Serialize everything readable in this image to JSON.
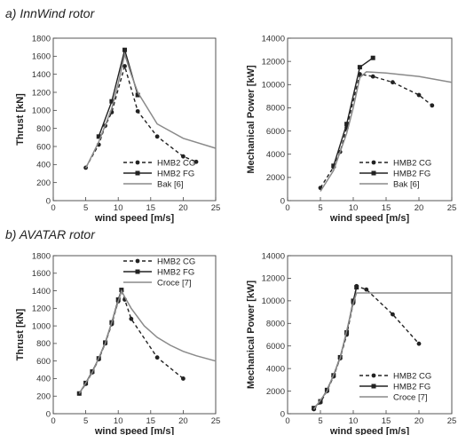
{
  "panel_titles": [
    "a)  InnWind rotor",
    "b)  AVATAR rotor"
  ],
  "colors": {
    "hmb2_cg": "#222222",
    "hmb2_fg": "#222222",
    "reference": "#8a8a8a"
  },
  "chart_data": [
    {
      "type": "line",
      "panel": "a)  InnWind rotor",
      "xlabel": "wind speed [m/s]",
      "ylabel": "Thrust [kN]",
      "xlim": [
        0,
        25
      ],
      "ylim": [
        0,
        1800
      ],
      "xticks": [
        0,
        5,
        10,
        15,
        20,
        25
      ],
      "yticks": [
        0,
        200,
        400,
        600,
        800,
        1000,
        1200,
        1400,
        1600,
        1800
      ],
      "grid": false,
      "legend": "bottom-right",
      "series": [
        {
          "name": "HMB2 CG",
          "style": "dashed",
          "marker": "circle",
          "x": [
            5,
            7,
            8,
            9,
            11,
            13,
            16,
            20,
            22
          ],
          "y": [
            365,
            620,
            830,
            980,
            1490,
            990,
            710,
            490,
            430
          ]
        },
        {
          "name": "HMB2 FG",
          "style": "solid",
          "marker": "square",
          "x": [
            7,
            9,
            11,
            13
          ],
          "y": [
            710,
            1100,
            1670,
            1170
          ]
        },
        {
          "name": "Bak [6]",
          "style": "solid-gray",
          "marker": "none",
          "x": [
            5,
            7,
            9,
            10,
            11,
            12,
            13,
            16,
            20,
            25
          ],
          "y": [
            360,
            650,
            1020,
            1300,
            1620,
            1400,
            1200,
            850,
            690,
            580
          ]
        }
      ]
    },
    {
      "type": "line",
      "panel": "a)  InnWind rotor",
      "xlabel": "wind speed [m/s]",
      "ylabel": "Mechanical Power [kW]",
      "xlim": [
        0,
        25
      ],
      "ylim": [
        0,
        14000
      ],
      "xticks": [
        0,
        5,
        10,
        15,
        20,
        25
      ],
      "yticks": [
        0,
        2000,
        4000,
        6000,
        8000,
        10000,
        12000,
        14000
      ],
      "grid": false,
      "legend": "bottom-right",
      "series": [
        {
          "name": "HMB2 CG",
          "style": "dashed",
          "marker": "circle",
          "x": [
            5,
            7,
            8,
            9,
            11,
            13,
            16,
            20,
            22
          ],
          "y": [
            1100,
            2900,
            4200,
            6300,
            10900,
            10700,
            10200,
            9100,
            8200
          ]
        },
        {
          "name": "HMB2 FG",
          "style": "solid",
          "marker": "square",
          "x": [
            7,
            9,
            11,
            13
          ],
          "y": [
            3000,
            6600,
            11500,
            12300
          ]
        },
        {
          "name": "Bak [6]",
          "style": "solid-gray",
          "marker": "none",
          "x": [
            5,
            7,
            9,
            10,
            11,
            12,
            15,
            20,
            25
          ],
          "y": [
            800,
            2600,
            5800,
            8000,
            10600,
            11100,
            11000,
            10700,
            10200
          ]
        }
      ]
    },
    {
      "type": "line",
      "panel": "b)  AVATAR rotor",
      "xlabel": "wind speed [m/s]",
      "ylabel": "Thrust [kN]",
      "xlim": [
        0,
        25
      ],
      "ylim": [
        0,
        1800
      ],
      "xticks": [
        0,
        5,
        10,
        15,
        20,
        25
      ],
      "yticks": [
        0,
        200,
        400,
        600,
        800,
        1000,
        1200,
        1400,
        1600,
        1800
      ],
      "grid": false,
      "legend": "top-right",
      "series": [
        {
          "name": "HMB2 CG",
          "style": "dashed",
          "marker": "circle",
          "x": [
            4,
            5,
            6,
            7,
            8,
            9,
            10,
            10.5,
            11,
            12,
            16,
            20
          ],
          "y": [
            230,
            340,
            470,
            620,
            800,
            1020,
            1280,
            1400,
            1300,
            1080,
            640,
            400
          ]
        },
        {
          "name": "HMB2 FG",
          "style": "solid",
          "marker": "square",
          "x": [
            4,
            5,
            6,
            7,
            8,
            9,
            10,
            10.5
          ],
          "y": [
            230,
            350,
            480,
            630,
            810,
            1040,
            1300,
            1410
          ]
        },
        {
          "name": "Croce [7]",
          "style": "solid-gray",
          "marker": "none",
          "x": [
            4,
            6,
            8,
            10,
            10.5,
            11,
            12,
            14,
            16,
            18,
            20,
            22,
            25
          ],
          "y": [
            230,
            470,
            800,
            1280,
            1400,
            1330,
            1200,
            1000,
            870,
            780,
            710,
            660,
            600
          ]
        }
      ]
    },
    {
      "type": "line",
      "panel": "b)  AVATAR rotor",
      "xlabel": "wind speed [m/s]",
      "ylabel": "Mechanical Power [kW]",
      "xlim": [
        0,
        25
      ],
      "ylim": [
        0,
        14000
      ],
      "xticks": [
        0,
        5,
        10,
        15,
        20,
        25
      ],
      "yticks": [
        0,
        2000,
        4000,
        6000,
        8000,
        10000,
        12000,
        14000
      ],
      "grid": false,
      "legend": "bottom-right",
      "series": [
        {
          "name": "HMB2 CG",
          "style": "dashed",
          "marker": "circle",
          "x": [
            4,
            5,
            6,
            7,
            8,
            9,
            10,
            10.5,
            12,
            16,
            20
          ],
          "y": [
            400,
            1000,
            2000,
            3300,
            4900,
            7000,
            9800,
            11300,
            11000,
            8800,
            6200
          ]
        },
        {
          "name": "HMB2 FG",
          "style": "solid",
          "marker": "square",
          "x": [
            4,
            5,
            6,
            7,
            8,
            9,
            10,
            10.5
          ],
          "y": [
            500,
            1100,
            2100,
            3400,
            5000,
            7200,
            10000,
            11200
          ]
        },
        {
          "name": "Croce [7]",
          "style": "solid-gray",
          "marker": "none",
          "x": [
            4,
            6,
            8,
            10,
            10.5,
            11,
            25
          ],
          "y": [
            400,
            2000,
            4900,
            9800,
            10700,
            10700,
            10700
          ]
        }
      ]
    }
  ]
}
